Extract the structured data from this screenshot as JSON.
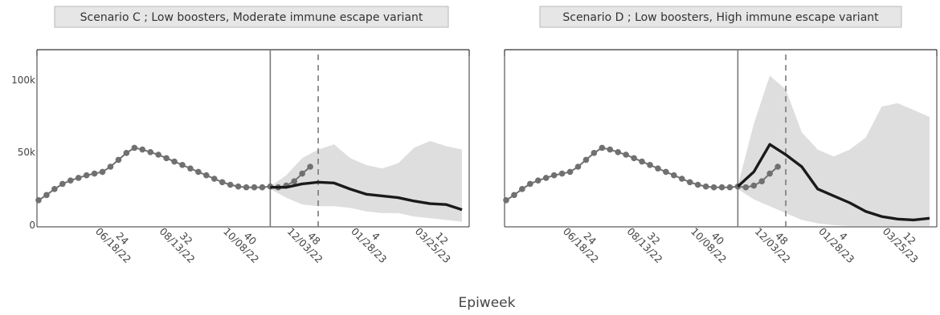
{
  "xlabel": "Epiweek",
  "colors": {
    "band": "#dedede",
    "projection": "#1a1a1a",
    "observed": "#707070",
    "title_bg": "#e6e6e6",
    "title_border": "#b8b8b8",
    "frame": "#333333",
    "vline": "#7a7a7a"
  },
  "chart_data": [
    {
      "type": "line",
      "title": "Scenario C ; Low boosters, Moderate immune escape variant",
      "xlabel": "Epiweek",
      "ylabel": "",
      "ylim": [
        0,
        105000
      ],
      "yticks": [
        0,
        50000,
        100000
      ],
      "ytick_labels": [
        "0",
        "50k",
        "100k"
      ],
      "xtick_labels": [
        [
          "24",
          "06/18/22"
        ],
        [
          "32",
          "08/13/22"
        ],
        [
          "40",
          "10/08/22"
        ],
        [
          "48",
          "12/03/22"
        ],
        [
          "4",
          "01/28/23"
        ],
        [
          "12",
          "03/25/23"
        ]
      ],
      "projection_start": "11/05/22",
      "latest_observed": "12/17/22",
      "series": [
        {
          "type": "scatter",
          "x": [
            "04/16/22",
            "04/23/22",
            "04/30/22",
            "05/07/22",
            "05/14/22",
            "05/21/22",
            "05/28/22",
            "06/04/22",
            "06/11/22",
            "06/18/22",
            "06/25/22",
            "07/02/22",
            "07/09/22",
            "07/16/22",
            "07/23/22",
            "07/30/22",
            "08/06/22",
            "08/13/22",
            "08/20/22",
            "08/27/22",
            "09/03/22",
            "09/10/22",
            "09/17/22",
            "09/24/22",
            "10/01/22",
            "10/08/22",
            "10/15/22",
            "10/22/22",
            "10/29/22",
            "11/05/22",
            "11/12/22",
            "11/19/22",
            "11/26/22",
            "12/03/22",
            "12/10/22"
          ],
          "y": [
            15500,
            18500,
            22000,
            25000,
            27000,
            28500,
            30000,
            31000,
            32000,
            35000,
            39000,
            43000,
            46000,
            45000,
            43500,
            42000,
            40000,
            38000,
            36000,
            34000,
            32000,
            30000,
            28000,
            26000,
            24500,
            23500,
            23000,
            23000,
            23000,
            23500,
            23000,
            24000,
            26500,
            31000,
            35000
          ]
        },
        {
          "type": "line",
          "x": [
            "11/05/22",
            "11/19/22",
            "12/03/22",
            "12/17/22",
            "12/31/22",
            "01/14/23",
            "01/28/23",
            "02/11/23",
            "02/25/23",
            "03/11/23",
            "03/25/23",
            "04/08/23",
            "04/22/23"
          ],
          "y": [
            23000,
            23000,
            25000,
            26000,
            25500,
            22000,
            19000,
            18000,
            17000,
            15000,
            13500,
            13000,
            10000
          ]
        },
        {
          "type": "area",
          "x": [
            "11/05/22",
            "11/19/22",
            "12/03/22",
            "12/17/22",
            "12/31/22",
            "01/14/23",
            "01/28/23",
            "02/11/23",
            "02/25/23",
            "03/11/23",
            "03/25/23",
            "04/08/23",
            "04/22/23"
          ],
          "upper": [
            23500,
            30000,
            40000,
            45000,
            48000,
            40000,
            36000,
            34000,
            37000,
            46000,
            50000,
            47000,
            45000
          ],
          "lower": [
            22000,
            17000,
            13000,
            12000,
            12000,
            11000,
            9000,
            8000,
            8000,
            6000,
            5000,
            4000,
            3000
          ]
        }
      ]
    },
    {
      "type": "line",
      "title": "Scenario D ; Low boosters, High immune escape variant",
      "xlabel": "Epiweek",
      "ylabel": "",
      "ylim": [
        0,
        105000
      ],
      "yticks": [
        0,
        50000,
        100000
      ],
      "ytick_labels": [
        "",
        "",
        ""
      ],
      "xtick_labels": [
        [
          "24",
          "06/18/22"
        ],
        [
          "32",
          "08/13/22"
        ],
        [
          "40",
          "10/08/22"
        ],
        [
          "48",
          "12/03/22"
        ],
        [
          "4",
          "01/28/23"
        ],
        [
          "12",
          "03/25/23"
        ]
      ],
      "projection_start": "11/05/22",
      "latest_observed": "12/17/22",
      "series": [
        {
          "type": "scatter",
          "x": [
            "04/16/22",
            "04/23/22",
            "04/30/22",
            "05/07/22",
            "05/14/22",
            "05/21/22",
            "05/28/22",
            "06/04/22",
            "06/11/22",
            "06/18/22",
            "06/25/22",
            "07/02/22",
            "07/09/22",
            "07/16/22",
            "07/23/22",
            "07/30/22",
            "08/06/22",
            "08/13/22",
            "08/20/22",
            "08/27/22",
            "09/03/22",
            "09/10/22",
            "09/17/22",
            "09/24/22",
            "10/01/22",
            "10/08/22",
            "10/15/22",
            "10/22/22",
            "10/29/22",
            "11/05/22",
            "11/12/22",
            "11/19/22",
            "11/26/22",
            "12/03/22",
            "12/10/22"
          ],
          "y": [
            15500,
            18500,
            22000,
            25000,
            27000,
            28500,
            30000,
            31000,
            32000,
            35000,
            39000,
            43000,
            46000,
            45000,
            43500,
            42000,
            40000,
            38000,
            36000,
            34000,
            32000,
            30000,
            28000,
            26000,
            24500,
            23500,
            23000,
            23000,
            23000,
            23500,
            23000,
            24000,
            26500,
            31000,
            35000
          ]
        },
        {
          "type": "line",
          "x": [
            "11/05/22",
            "11/19/22",
            "12/03/22",
            "12/17/22",
            "12/31/22",
            "01/14/23",
            "01/28/23",
            "02/11/23",
            "02/25/23",
            "03/11/23",
            "03/25/23",
            "04/08/23",
            "04/22/23"
          ],
          "y": [
            23500,
            32000,
            48000,
            42000,
            35000,
            22000,
            18000,
            14000,
            9000,
            6000,
            4500,
            4000,
            5000
          ]
        },
        {
          "type": "area",
          "x": [
            "11/05/22",
            "11/19/22",
            "12/03/22",
            "12/17/22",
            "12/31/22",
            "01/14/23",
            "01/28/23",
            "02/11/23",
            "02/25/23",
            "03/11/23",
            "03/25/23",
            "04/08/23",
            "04/22/23"
          ],
          "upper": [
            24000,
            60000,
            88000,
            80000,
            55000,
            45000,
            41000,
            45000,
            52000,
            70000,
            72000,
            68000,
            64000
          ],
          "lower": [
            22000,
            16000,
            12000,
            8000,
            4000,
            2000,
            1000,
            500,
            500,
            500,
            500,
            500,
            500
          ]
        }
      ]
    }
  ]
}
